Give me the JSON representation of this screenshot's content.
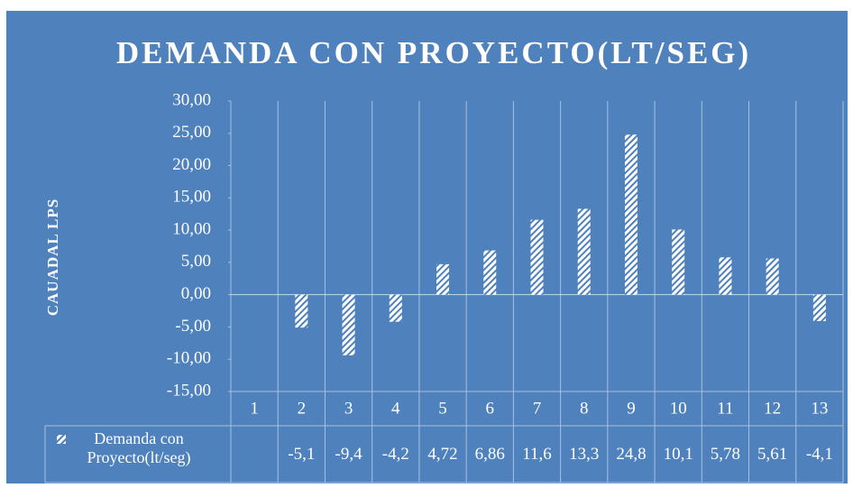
{
  "chart_data": {
    "type": "bar",
    "title": "DEMANDA CON PROYECTO(LT/SEG)",
    "y_label": "CAUADAL  LPS",
    "categories": [
      "1",
      "2",
      "3",
      "4",
      "5",
      "6",
      "7",
      "8",
      "9",
      "10",
      "11",
      "12",
      "13"
    ],
    "series": [
      {
        "name": "Demanda con Proyecto(lt/seg)",
        "color": "#ffffff",
        "values": [
          null,
          -5.1,
          -9.4,
          -4.2,
          4.72,
          6.86,
          11.6,
          13.3,
          24.8,
          10.1,
          5.78,
          5.61,
          -4.1
        ],
        "value_labels": [
          null,
          "-5,1",
          "-9,4",
          "-4,2",
          "4,72",
          "6,86",
          "11,6",
          "13,3",
          "24,8",
          "10,1",
          "5,78",
          "5,61",
          "-4,1"
        ]
      }
    ],
    "ylim": [
      -15,
      30
    ],
    "yticks": [
      {
        "value": -15,
        "label": "-15,00"
      },
      {
        "value": -10,
        "label": "-10,00"
      },
      {
        "value": -5,
        "label": "-5,00"
      },
      {
        "value": 0,
        "label": "0,00"
      },
      {
        "value": 5,
        "label": "5,00"
      },
      {
        "value": 10,
        "label": "10,00"
      },
      {
        "value": 15,
        "label": "15,00"
      },
      {
        "value": 20,
        "label": "20,00"
      },
      {
        "value": 25,
        "label": "25,00"
      },
      {
        "value": 30,
        "label": "30,00"
      }
    ],
    "data_table": true
  }
}
